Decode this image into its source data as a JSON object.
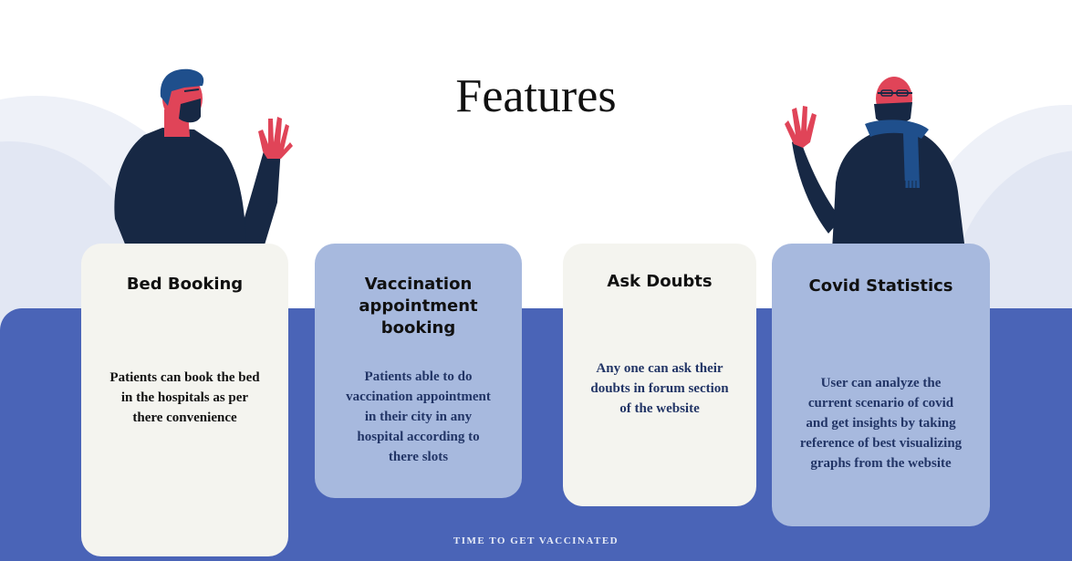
{
  "page": {
    "title": "Features",
    "footer": "TIME TO GET VACCINATED"
  },
  "cards": [
    {
      "title": "Bed Booking",
      "text": "Patients can book the bed in the hospitals as per there convenience"
    },
    {
      "title": "Vaccination appointment booking",
      "text": "Patients able to do vaccination appointment in their city in any hospital according to there slots"
    },
    {
      "title": "Ask Doubts",
      "text": "Any one can ask their doubts in forum section of the website"
    },
    {
      "title": "Covid Statistics",
      "text": "User can analyze the current scenario of covid and get insights by taking reference of best visualizing graphs from the website"
    }
  ],
  "colors": {
    "band": "#4a64b7",
    "card_light": "#f4f4ef",
    "card_blue": "#a7b9de",
    "figure_dark": "#172844",
    "skin": "#e04458",
    "hair": "#1f4f8c",
    "background_hill": "#e7ebf5"
  },
  "icons": {
    "left_figure": "waving-man-icon",
    "right_figure": "waving-masked-man-icon"
  }
}
